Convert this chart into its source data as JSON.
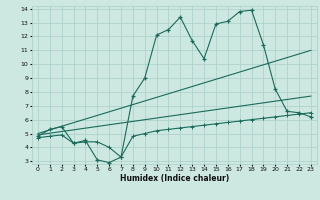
{
  "xlabel": "Humidex (Indice chaleur)",
  "xlim": [
    -0.5,
    23.5
  ],
  "ylim": [
    2.8,
    14.2
  ],
  "xticks": [
    0,
    1,
    2,
    3,
    4,
    5,
    6,
    7,
    8,
    9,
    10,
    11,
    12,
    13,
    14,
    15,
    16,
    17,
    18,
    19,
    20,
    21,
    22,
    23
  ],
  "yticks": [
    3,
    4,
    5,
    6,
    7,
    8,
    9,
    10,
    11,
    12,
    13,
    14
  ],
  "bg_color": "#cce8e0",
  "grid_color": "#aacfc8",
  "line_color": "#1a6b5a",
  "line1_x": [
    0,
    1,
    2,
    3,
    4,
    5,
    6,
    7,
    8,
    9,
    10,
    11,
    12,
    13,
    14,
    15,
    16,
    17,
    18,
    19,
    20,
    21,
    22,
    23
  ],
  "line1_y": [
    4.8,
    5.3,
    5.5,
    4.3,
    4.5,
    3.1,
    2.9,
    3.3,
    7.7,
    9.0,
    12.1,
    12.5,
    13.4,
    11.7,
    10.4,
    12.9,
    13.1,
    13.8,
    13.9,
    11.4,
    8.2,
    6.6,
    6.5,
    6.2
  ],
  "line2_x": [
    0,
    23
  ],
  "line2_y": [
    5.0,
    11.0
  ],
  "line3_x": [
    0,
    23
  ],
  "line3_y": [
    4.9,
    7.7
  ],
  "line4_x": [
    0,
    1,
    2,
    3,
    4,
    5,
    6,
    7,
    8,
    9,
    10,
    11,
    12,
    13,
    14,
    15,
    16,
    17,
    18,
    19,
    20,
    21,
    22,
    23
  ],
  "line4_y": [
    4.7,
    4.8,
    4.9,
    4.3,
    4.4,
    4.4,
    4.0,
    3.3,
    4.8,
    5.0,
    5.2,
    5.3,
    5.4,
    5.5,
    5.6,
    5.7,
    5.8,
    5.9,
    6.0,
    6.1,
    6.2,
    6.3,
    6.4,
    6.5
  ]
}
